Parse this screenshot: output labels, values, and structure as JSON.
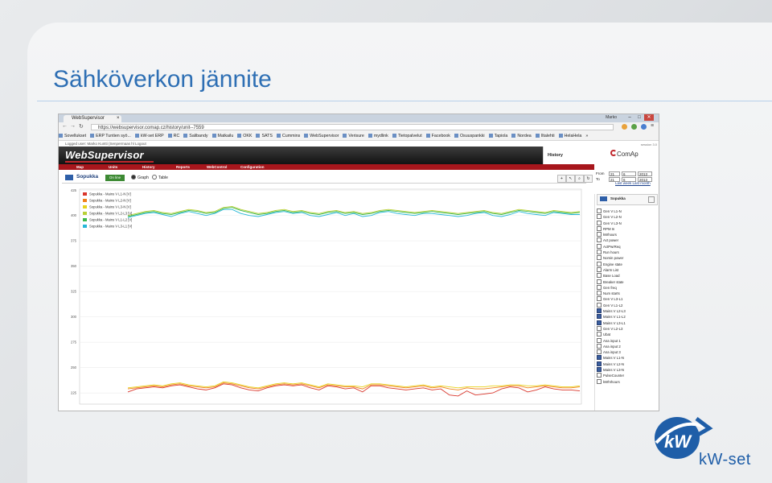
{
  "slide": {
    "title": "Sähköverkon jännite",
    "logo_text": "kW-set",
    "accent_color": "#2e6fb4"
  },
  "browser": {
    "tab_title": "WebSupervisor",
    "tab_close": "×",
    "user_label": "Marko",
    "min": "–",
    "max": "□",
    "close": "✕",
    "url": "https://websupervisor.comap.cz/history/unit--7559",
    "bookmarks": [
      "Sovellukset",
      "ERP Tuntien syö...",
      "kW-set ERP",
      "RC",
      "Salibandy",
      "Matkailu",
      "OKK",
      "SATS",
      "Cummins",
      "WebSupervisor",
      "Verisure",
      "mydlink",
      "Tietopalvelut",
      "Facebook",
      "Osuuspankki",
      "Tapiola",
      "Nordea",
      "Iltalehti",
      "HelaHela"
    ],
    "more": "»"
  },
  "websupervisor": {
    "login_text": "Logged user: Marko Kuntti (Senpermaas hl    Logout",
    "logo": "WebSupervisor",
    "history_label": "History",
    "session_label": "session 3.0",
    "menu": [
      "Map",
      "Units",
      "History",
      "Reports",
      "WebControl",
      "Configuration"
    ],
    "brand": "ComAp",
    "date_from_label": "From",
    "date_to_label": "To",
    "date_from": [
      "21",
      "6",
      "2013"
    ],
    "date_to": [
      "21",
      "6",
      "2013"
    ],
    "date_links": "Last week  Last month",
    "unit_name": "Sopukka",
    "status_badge": "On line",
    "view_graph": "Graph",
    "view_table": "Table",
    "tools": [
      "+",
      "↖",
      "⌕",
      "↻"
    ]
  },
  "sidebar": {
    "unit_name": "Sopukka",
    "items": [
      {
        "label": "Gen V L1-N",
        "checked": false
      },
      {
        "label": "Gen V L2-N",
        "checked": false
      },
      {
        "label": "Gen V L3-N",
        "checked": false
      },
      {
        "label": "RPM In",
        "checked": false
      },
      {
        "label": "kWhours",
        "checked": false
      },
      {
        "label": "Act power",
        "checked": false
      },
      {
        "label": "ActPwrReq",
        "checked": false
      },
      {
        "label": "Run hours",
        "checked": false
      },
      {
        "label": "Nomin power",
        "checked": false
      },
      {
        "label": "Engine state",
        "checked": false
      },
      {
        "label": "Alarm List",
        "checked": false
      },
      {
        "label": "Base Load",
        "checked": false
      },
      {
        "label": "Breaker state",
        "checked": false
      },
      {
        "label": "Gen freq",
        "checked": false
      },
      {
        "label": "Num starts",
        "checked": false
      },
      {
        "label": "Gen V L3-L1",
        "checked": false
      },
      {
        "label": "Gen V L1-L2",
        "checked": false
      },
      {
        "label": "Mains V L2-L3",
        "checked": true
      },
      {
        "label": "Mains V L1-L2",
        "checked": true
      },
      {
        "label": "Mains V L3-L1",
        "checked": true
      },
      {
        "label": "Gen V L2-L3",
        "checked": false
      },
      {
        "label": "Ubat",
        "checked": false
      },
      {
        "label": "Ana input 1",
        "checked": false
      },
      {
        "label": "Ana input 2",
        "checked": false
      },
      {
        "label": "Ana input 3",
        "checked": false
      },
      {
        "label": "Mains V L1-N",
        "checked": true
      },
      {
        "label": "Mains V L2-N",
        "checked": true
      },
      {
        "label": "Mains V L3-N",
        "checked": true
      },
      {
        "label": "PulseCounter",
        "checked": false
      },
      {
        "label": "kWhrhours",
        "checked": false
      }
    ]
  },
  "chart_data": {
    "type": "line",
    "ylim": [
      214,
      426
    ],
    "y_ticks": [
      "425",
      "400",
      "375",
      "350",
      "325",
      "300",
      "275",
      "250",
      "225"
    ],
    "series": [
      {
        "name": "Sopukka - Mains V L1-N [V]",
        "color": "#d9352b",
        "values": [
          226,
          229,
          230,
          231,
          230,
          232,
          233,
          231,
          229,
          228,
          230,
          234,
          233,
          230,
          228,
          227,
          230,
          232,
          233,
          232,
          233,
          230,
          228,
          232,
          231,
          229,
          230,
          226,
          232,
          232,
          230,
          229,
          228,
          229,
          230,
          228,
          229,
          223,
          222,
          227,
          223,
          224,
          225,
          229,
          231,
          230,
          226,
          228,
          231,
          229,
          228,
          228,
          227
        ]
      },
      {
        "name": "Sopukka - Mains V L2-N [V]",
        "color": "#f07f19",
        "values": [
          229,
          230,
          231,
          232,
          231,
          233,
          234,
          232,
          231,
          230,
          231,
          235,
          234,
          232,
          230,
          229,
          231,
          233,
          234,
          233,
          234,
          232,
          230,
          233,
          232,
          231,
          231,
          229,
          233,
          233,
          232,
          231,
          230,
          231,
          232,
          230,
          231,
          229,
          228,
          230,
          229,
          229,
          230,
          231,
          232,
          232,
          230,
          231,
          232,
          231,
          230,
          230,
          231
        ]
      },
      {
        "name": "Sopukka - Mains V L3-N [V]",
        "color": "#e7d21c",
        "values": [
          230,
          231,
          232,
          233,
          232,
          234,
          235,
          233,
          232,
          231,
          232,
          236,
          235,
          233,
          231,
          230,
          232,
          234,
          235,
          234,
          235,
          233,
          231,
          234,
          233,
          232,
          232,
          231,
          234,
          234,
          233,
          232,
          231,
          232,
          233,
          231,
          232,
          231,
          230,
          231,
          231,
          231,
          232,
          232,
          233,
          233,
          232,
          232,
          233,
          232,
          231,
          231,
          232
        ]
      },
      {
        "name": "Sopukka - Mains V L2-L3 [V]",
        "color": "#b8d036",
        "values": [
          400,
          402,
          404,
          405,
          403,
          402,
          404,
          406,
          405,
          403,
          404,
          408,
          409,
          406,
          404,
          402,
          403,
          405,
          406,
          404,
          405,
          403,
          402,
          404,
          405,
          403,
          404,
          402,
          403,
          405,
          406,
          405,
          404,
          403,
          404,
          405,
          404,
          403,
          402,
          403,
          404,
          405,
          403,
          402,
          404,
          406,
          405,
          404,
          403,
          405,
          404,
          403,
          404
        ]
      },
      {
        "name": "Sopukka - Mains V L1-L2 [V]",
        "color": "#3bb84a",
        "values": [
          399,
          401,
          403,
          404,
          402,
          401,
          403,
          405,
          404,
          402,
          403,
          407,
          408,
          405,
          403,
          401,
          402,
          404,
          405,
          403,
          404,
          402,
          401,
          403,
          404,
          402,
          403,
          401,
          402,
          404,
          405,
          404,
          403,
          402,
          403,
          404,
          403,
          402,
          401,
          402,
          403,
          404,
          402,
          401,
          403,
          405,
          404,
          403,
          402,
          404,
          403,
          402,
          403
        ]
      },
      {
        "name": "Sopukka - Mains V L3-L1 [V]",
        "color": "#27b7d8",
        "values": [
          398,
          400,
          402,
          403,
          401,
          399,
          402,
          404,
          402,
          400,
          402,
          406,
          406,
          402,
          400,
          399,
          401,
          403,
          404,
          402,
          403,
          400,
          399,
          401,
          403,
          400,
          402,
          399,
          400,
          403,
          404,
          402,
          401,
          400,
          402,
          402,
          401,
          400,
          399,
          400,
          402,
          403,
          400,
          399,
          401,
          404,
          402,
          401,
          400,
          403,
          402,
          401,
          401
        ]
      }
    ]
  }
}
